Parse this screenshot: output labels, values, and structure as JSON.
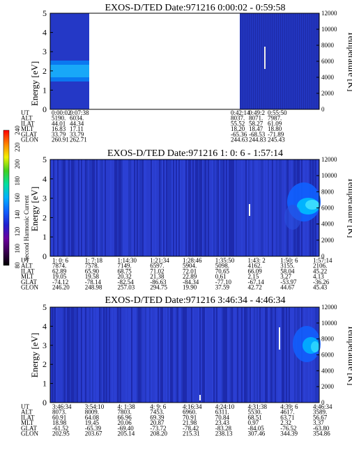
{
  "chart_data": [
    {
      "type": "heatmap",
      "title": "EXOS-D/TED   Date:971216  0:00:02 - 0:59:58",
      "ylabel": "Energy [eV]",
      "y2label": "Temperature [K]",
      "ylim": [
        0,
        5
      ],
      "yticks": [
        "0",
        "1",
        "2",
        "3",
        "4",
        "5"
      ],
      "y2lim": [
        0,
        12000
      ],
      "y2ticks": [
        "0",
        "2000",
        "4000",
        "6000",
        "8000",
        "10000",
        "12000"
      ],
      "data_coverage": [
        [
          0,
          0.2
        ],
        [
          0.8,
          1
        ]
      ],
      "ephemeris": {
        "rows": [
          "UT",
          "ALT",
          "ILAT",
          "MLT",
          "GLAT",
          "GLON"
        ],
        "columns": [
          [
            "0:00:02",
            "5190.",
            "44.01",
            "16.83",
            "33.79",
            "260.91"
          ],
          [
            "0:07:38",
            "6034.",
            "44.34",
            "17.11",
            "33.79",
            "262.71"
          ],
          [
            "0:42:14",
            "8037.",
            "55.52",
            "18.20",
            "-65.36",
            "244.63"
          ],
          [
            "0:49:2",
            "8071.",
            "58.27",
            "18.47",
            "-68.53",
            "244.83"
          ],
          [
            "0:55:50",
            "7987.",
            "61.09",
            "18.80",
            "-71.89",
            "245.43"
          ]
        ]
      }
    },
    {
      "type": "heatmap",
      "title": "EXOS-D/TED   Date:971216  1: 0: 6 - 1:57:14",
      "ylabel": "Energy [eV]",
      "y2label": "Temperature [K]",
      "ylim": [
        0,
        5
      ],
      "yticks": [
        "0",
        "1",
        "2",
        "3",
        "4",
        "5"
      ],
      "y2lim": [
        0,
        12000
      ],
      "y2ticks": [
        "0",
        "2000",
        "4000",
        "6000",
        "8000",
        "10000",
        "12000"
      ],
      "ephemeris": {
        "rows": [
          "UT",
          "ALT",
          "ILAT",
          "MLT",
          "GLAT",
          "GLON"
        ],
        "columns": [
          [
            "1: 0: 6",
            "7874.",
            "62.89",
            "19.05",
            "-74.12",
            "246.20"
          ],
          [
            "1: 7:18",
            "7578.",
            "65.90",
            "19.58",
            "-78.14",
            "248.98"
          ],
          [
            "1:14:30",
            "7149.",
            "68.75",
            "20.32",
            "-82.54",
            "257.03"
          ],
          [
            "1:21:34",
            "6597.",
            "71.02",
            "21.38",
            "-86.63",
            "294.75"
          ],
          [
            "1:28:46",
            "5904.",
            "72.01",
            "22.89",
            "-84.34",
            "19.90"
          ],
          [
            "1:35:50",
            "5098.",
            "70.65",
            "0.61",
            "-77.10",
            "37.59"
          ],
          [
            "1:43: 2",
            "4162.",
            "66.09",
            "2.15",
            "-67.14",
            "42.72"
          ],
          [
            "1:50: 6",
            "3155.",
            "58.04",
            "3.27",
            "-53.97",
            "44.67"
          ],
          [
            "1:57:14",
            "2106.",
            "45.22",
            "4.13",
            "-36.26",
            "45.43"
          ]
        ]
      }
    },
    {
      "type": "heatmap",
      "title": "EXOS-D/TED   Date:971216  3:46:34 - 4:46:34",
      "ylabel": "Energy [eV]",
      "y2label": "Temperature [K]",
      "ylim": [
        0,
        5
      ],
      "yticks": [
        "0",
        "1",
        "2",
        "3",
        "4",
        "5"
      ],
      "y2lim": [
        0,
        12000
      ],
      "y2ticks": [
        "0",
        "2000",
        "4000",
        "6000",
        "8000",
        "10000",
        "12000"
      ],
      "ephemeris": {
        "rows": [
          "UT",
          "ALT",
          "ILAT",
          "MLT",
          "GLAT",
          "GLON"
        ],
        "columns": [
          [
            "3:46:34",
            "8073.",
            "60.91",
            "18.98",
            "-61.52",
            "202.95"
          ],
          [
            "3:54:10",
            "8009.",
            "64.08",
            "19.45",
            "-65.39",
            "203.67"
          ],
          [
            "4: 1:38",
            "7803.",
            "66.96",
            "20.06",
            "-69.40",
            "205.14"
          ],
          [
            "4: 9: 6",
            "7453.",
            "69.39",
            "20.87",
            "-73.72",
            "208.20"
          ],
          [
            "4:16:34",
            "6960.",
            "70.91",
            "21.98",
            "-78.42",
            "215.31"
          ],
          [
            "4:24:10",
            "6311.",
            "70.84",
            "23.43",
            "-83.28",
            "238.13"
          ],
          [
            "4:31:38",
            "5530.",
            "68.51",
            "0.97",
            "-84.05",
            "307.46"
          ],
          [
            "4:39: 6",
            "4617.",
            "63.71",
            "2.32",
            "-76.52",
            "344.39"
          ],
          [
            "4:46:34",
            "3589.",
            "56.67",
            "3.37",
            "-63.80",
            "354.86"
          ]
        ]
      }
    }
  ],
  "colorbar": {
    "label": "Second Harmonic Current",
    "ticks": [
      "80",
      "100",
      "120",
      "140",
      "160",
      "180",
      "200",
      "220",
      "240"
    ],
    "colors": [
      "#000000",
      "#3a0050",
      "#6a00a0",
      "#2020d0",
      "#1060ff",
      "#00b0ff",
      "#00e0a0",
      "#40d020",
      "#f0f000",
      "#ff8000",
      "#ff0000"
    ]
  }
}
